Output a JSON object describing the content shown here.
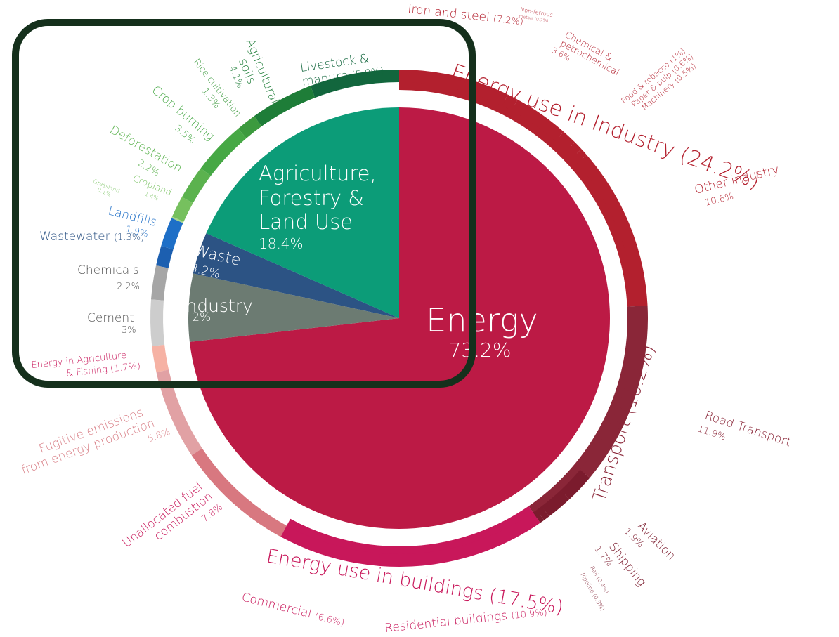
{
  "chart_data": {
    "type": "pie",
    "sectors": [
      {
        "name": "Energy",
        "value": 73.2,
        "display": "73.2%",
        "color": "#bc1a45",
        "label_color": "#ffffff"
      },
      {
        "name": "Industry",
        "value": 5.2,
        "display": "5.2%",
        "color": "#6c7b72",
        "label_color": "#ffffff"
      },
      {
        "name": "Waste",
        "value": 3.2,
        "display": "3.2%",
        "color": "#2c5384",
        "label_color": "#ffffff"
      },
      {
        "name": "Agriculture, Forestry & Land Use",
        "display_lines": [
          "Agriculture,",
          "Forestry &",
          "Land Use"
        ],
        "value": 18.4,
        "display": "18.4%",
        "color": "#0c9c78",
        "label_color": "#ffffff"
      }
    ],
    "groups": [
      {
        "name": "Energy use in Industry",
        "value": 24.2,
        "label": "Energy use in Industry (24.2%)",
        "color": "#b3202e"
      },
      {
        "name": "Transport",
        "value": 16.2,
        "label": "Transport (16.2%)",
        "color": "#8a2638"
      },
      {
        "name": "Energy use in buildings",
        "value": 17.5,
        "label": "Energy use in buildings (17.5%)",
        "color": "#c8175a"
      }
    ],
    "subsectors": [
      {
        "label": "Livestock & manure (5.8%)",
        "value": 5.8,
        "color": "#12663d"
      },
      {
        "label": "Agricultural soils 4.1%",
        "value": 4.1,
        "color": "#1e7d38"
      },
      {
        "label": "Rice cultivation 1.3%",
        "value": 1.3,
        "color": "#3c9a3e"
      },
      {
        "label": "Crop burning 3.5%",
        "value": 3.5,
        "color": "#46a845"
      },
      {
        "label": "Deforestation 2.2%",
        "value": 2.2,
        "color": "#5bb24e"
      },
      {
        "label": "Cropland 1.4%",
        "value": 1.4,
        "color": "#76c05e"
      },
      {
        "label": "Grassland 0.1%",
        "value": 0.1,
        "color": "#a7d58c"
      },
      {
        "label": "Landfills 1.9%",
        "value": 1.9,
        "color": "#1e6fc7"
      },
      {
        "label": "Wastewater (1.3%)",
        "value": 1.3,
        "color": "#1c5fb0"
      },
      {
        "label": "Chemicals 2.2%",
        "value": 2.2,
        "color": "#a6a6a6"
      },
      {
        "label": "Cement 3%",
        "value": 3.0,
        "color": "#cdcdcd"
      },
      {
        "label": "Energy in Agriculture & Fishing (1.7%)",
        "value": 1.7,
        "color": "#f6b2a4"
      },
      {
        "label": "Fugitive emissions from energy production 5.8%",
        "value": 5.8,
        "color": "#e1a1a4"
      },
      {
        "label": "Unallocated fuel combustion 7.8%",
        "value": 7.8,
        "color": "#d87880"
      },
      {
        "label": "Commercial (6.6%)",
        "value": 6.6,
        "color": "#c8175a"
      },
      {
        "label": "Residential buildings (10.9%)",
        "value": 10.9,
        "color": "#c8175a"
      },
      {
        "label": "Pipeline (0.3%)",
        "value": 0.3,
        "color": "#7b1b2d"
      },
      {
        "label": "Rail (0.4%)",
        "value": 0.4,
        "color": "#7b1b2d"
      },
      {
        "label": "Shipping 1.7%",
        "value": 1.7,
        "color": "#7b1b2d"
      },
      {
        "label": "Aviation 1.9%",
        "value": 1.9,
        "color": "#7b1b2d"
      },
      {
        "label": "Road Transport 11.9%",
        "value": 11.9,
        "color": "#8a2638"
      },
      {
        "label": "Other industry 10.6%",
        "value": 10.6,
        "color": "#b3202e"
      },
      {
        "label": "Machinery (0.5%)",
        "value": 0.5,
        "color": "#b3202e"
      },
      {
        "label": "Paper & pulp (0.6%)",
        "value": 0.6,
        "color": "#b3202e"
      },
      {
        "label": "Food & tobacco (1%)",
        "value": 1.0,
        "color": "#b3202e"
      },
      {
        "label": "Chemical & petrochemical 3.6%",
        "value": 3.6,
        "color": "#b3202e"
      },
      {
        "label": "Non-ferrous metals (0.7%)",
        "value": 0.7,
        "color": "#b3202e"
      },
      {
        "label": "Iron and steel (7.2%)",
        "value": 7.2,
        "color": "#b3202e"
      }
    ],
    "highlight_color": "#15301c"
  }
}
